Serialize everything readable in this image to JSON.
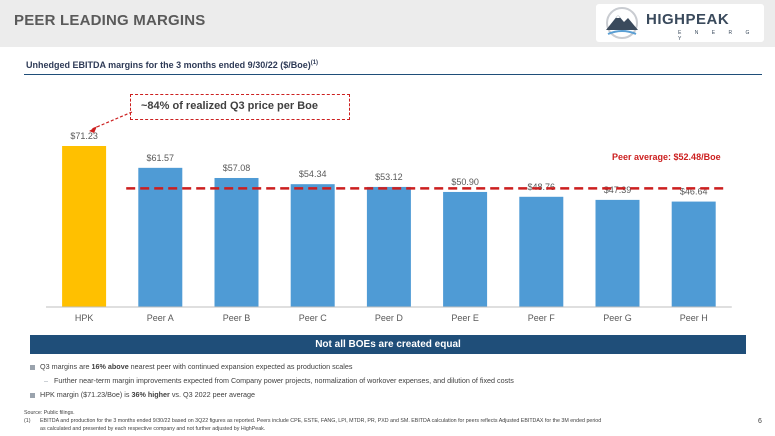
{
  "header": {
    "title": "PEER LEADING MARGINS",
    "logo_text": "HIGHPEAK",
    "logo_sub": "E N E R G Y"
  },
  "subtitle": {
    "text": "Unhedged EBITDA margins for the 3 months ended 9/30/22 ($/Boe)",
    "footnote_ref": "(1)"
  },
  "callout": "~84% of realized Q3 price per Boe",
  "peer_average_label": "Peer average: $52.48/Boe",
  "banner": "Not all BOEs are created equal",
  "bullets": {
    "b1_a": "Q3 margins are ",
    "b1_b": "16% above",
    "b1_c": " nearest peer with continued expansion expected as production scales",
    "b2": "Further near-term margin improvements expected from Company power projects, normalization of workover expenses, and dilution of fixed costs",
    "b3_a": "HPK margin ($71.23/Boe) is ",
    "b3_b": "36% higher",
    "b3_c": " vs. Q3 2022 peer average"
  },
  "footer": {
    "source": "Source: Public filings.",
    "note_num": "(1)",
    "note_line1": "EBITDA and production for the 3 months ended 9/30/22 based on 3Q22 figures as reported. Peers include CPE, ESTE, FANG, LPI, MTDR, PR, PXD and SM. EBITDA calculation for peers reflects Adjusted EBITDAX for the 3M ended period",
    "note_line2": "as calculated and presented by each respective company and not further adjusted by HighPeak.",
    "page_number": "6"
  },
  "chart_data": {
    "type": "bar",
    "categories": [
      "HPK",
      "Peer A",
      "Peer B",
      "Peer C",
      "Peer D",
      "Peer E",
      "Peer F",
      "Peer G",
      "Peer H"
    ],
    "values": [
      71.23,
      61.57,
      57.08,
      54.34,
      53.12,
      50.9,
      48.76,
      47.39,
      46.64
    ],
    "data_labels": [
      "$71.23",
      "$61.57",
      "$57.08",
      "$54.34",
      "$53.12",
      "$50.90",
      "$48.76",
      "$47.39",
      "$46.64"
    ],
    "highlight_color": "#ffc000",
    "bar_color": "#4f9bd5",
    "reference_line": {
      "value": 52.48,
      "color": "#cc1f1f",
      "style": "dashed"
    },
    "ylim": [
      0,
      71.23
    ],
    "grid": false
  }
}
